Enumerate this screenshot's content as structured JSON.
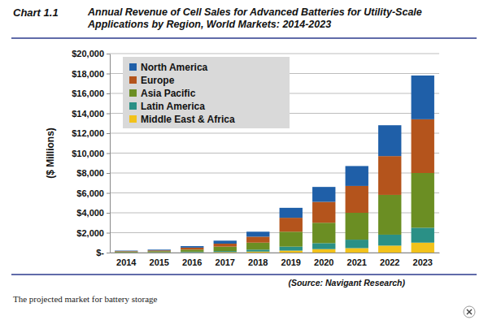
{
  "chart_data": {
    "type": "bar",
    "stacked": true,
    "grid": true,
    "legend": "top-left",
    "title": "Annual Revenue of Cell Sales for Advanced Batteries for Utility-Scale Applications by Region, World Markets: 2014-2023",
    "y_label": "($ Millions)",
    "categories": [
      "2014",
      "2015",
      "2016",
      "2017",
      "2018",
      "2019",
      "2020",
      "2021",
      "2022",
      "2023"
    ],
    "ylim": [
      0,
      20000
    ],
    "yticks": [
      {
        "value": 0,
        "label": "$-"
      },
      {
        "value": 2000,
        "label": "$2,000"
      },
      {
        "value": 4000,
        "label": "$4,000"
      },
      {
        "value": 6000,
        "label": "$6,000"
      },
      {
        "value": 8000,
        "label": "$8,000"
      },
      {
        "value": 10000,
        "label": "$10,000"
      },
      {
        "value": 12000,
        "label": "$12,000"
      },
      {
        "value": 14000,
        "label": "$14,000"
      },
      {
        "value": 16000,
        "label": "$16,000"
      },
      {
        "value": 18000,
        "label": "$18,000"
      },
      {
        "value": 20000,
        "label": "$20,000"
      }
    ],
    "series": [
      {
        "name": "North America",
        "color": "#1f5fa8",
        "values": [
          50,
          75,
          150,
          300,
          500,
          1000,
          1500,
          2000,
          3100,
          4400
        ]
      },
      {
        "name": "Europe",
        "color": "#b4541c",
        "values": [
          50,
          80,
          200,
          300,
          600,
          1400,
          2100,
          2700,
          3900,
          5400
        ]
      },
      {
        "name": "Asia Pacific",
        "color": "#6b8e23",
        "values": [
          70,
          100,
          210,
          440,
          700,
          1500,
          2050,
          2700,
          4000,
          5500
        ]
      },
      {
        "name": "Latin America",
        "color": "#2a9086",
        "values": [
          20,
          30,
          60,
          100,
          200,
          400,
          600,
          850,
          1100,
          1500
        ]
      },
      {
        "name": "Middle East & Africa",
        "color": "#f2c21b",
        "values": [
          10,
          15,
          30,
          60,
          100,
          200,
          350,
          450,
          700,
          1000
        ]
      }
    ]
  },
  "figure": {
    "number": "Chart 1.1",
    "source": "(Source: Navigant Research)",
    "caption": "The projected market for battery storage"
  }
}
